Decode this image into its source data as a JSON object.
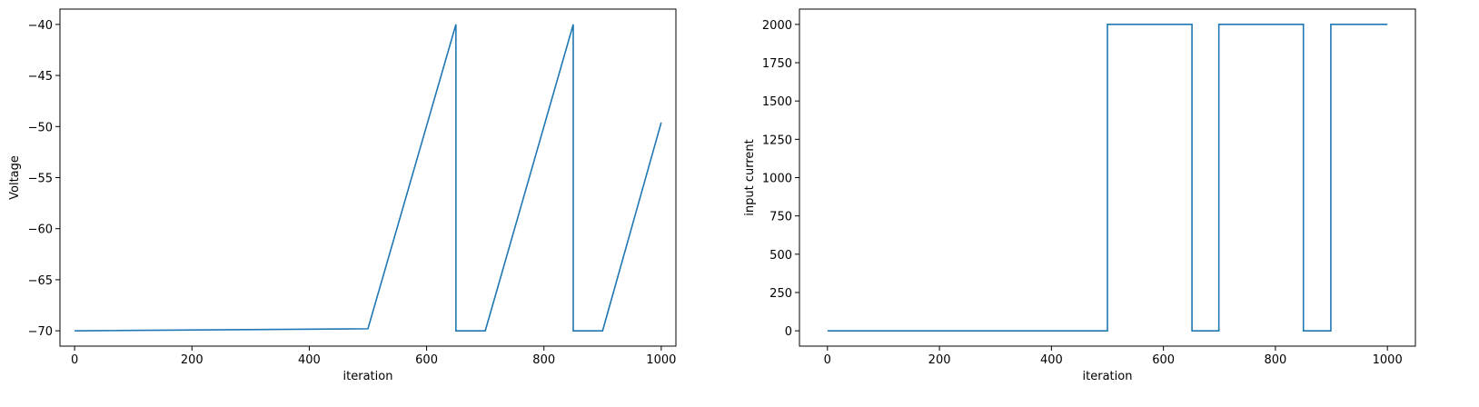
{
  "colors": {
    "series": "#1f77b4",
    "axis": "#000000",
    "background": "#ffffff"
  },
  "chart_data": [
    {
      "type": "line",
      "xlabel": "iteration",
      "ylabel": "Voltage",
      "xlim": [
        -25,
        1025
      ],
      "ylim": [
        -71.5,
        -38.5
      ],
      "xticks": [
        0,
        200,
        400,
        600,
        800,
        1000
      ],
      "yticks": [
        -70,
        -65,
        -60,
        -55,
        -50,
        -45,
        -40
      ],
      "xtick_labels": [
        "0",
        "200",
        "400",
        "600",
        "800",
        "1000"
      ],
      "ytick_labels": [
        "−70",
        "−65",
        "−60",
        "−55",
        "−50",
        "−45",
        "−40"
      ],
      "grid": false,
      "series": [
        {
          "x": [
            0,
            500,
            650,
            650,
            700,
            850,
            850,
            900,
            1000
          ],
          "y": [
            -70,
            -69.8,
            -40,
            -70,
            -70,
            -40,
            -70,
            -70,
            -49.6
          ]
        }
      ]
    },
    {
      "type": "line",
      "xlabel": "iteration",
      "ylabel": "input current",
      "xlim": [
        -50,
        1050
      ],
      "ylim": [
        -100,
        2100
      ],
      "xticks": [
        0,
        200,
        400,
        600,
        800,
        1000
      ],
      "yticks": [
        0,
        250,
        500,
        750,
        1000,
        1250,
        1500,
        1750,
        2000
      ],
      "xtick_labels": [
        "0",
        "200",
        "400",
        "600",
        "800",
        "1000"
      ],
      "ytick_labels": [
        "0",
        "250",
        "500",
        "750",
        "1000",
        "1250",
        "1500",
        "1750",
        "2000"
      ],
      "grid": false,
      "series": [
        {
          "x": [
            0,
            500,
            500,
            651,
            651,
            699,
            699,
            850,
            850,
            899,
            899,
            1000
          ],
          "y": [
            0,
            0,
            2000,
            2000,
            0,
            0,
            2000,
            2000,
            0,
            0,
            2000,
            2000
          ]
        }
      ]
    }
  ]
}
